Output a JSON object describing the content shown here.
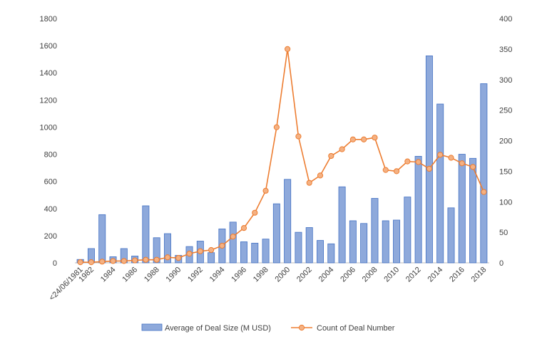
{
  "chart_data": {
    "type": "bar",
    "title": "",
    "xlabel": "",
    "categories": [
      "<24/06/1981",
      "1982",
      "1983",
      "1984",
      "1985",
      "1986",
      "1987",
      "1988",
      "1989",
      "1990",
      "1991",
      "1992",
      "1993",
      "1994",
      "1995",
      "1996",
      "1997",
      "1998",
      "1999",
      "2000",
      "2001",
      "2002",
      "2003",
      "2004",
      "2005",
      "2006",
      "2007",
      "2008",
      "2009",
      "2010",
      "2011",
      "2012",
      "2013",
      "2014",
      "2015",
      "2016",
      "2017",
      "2018"
    ],
    "x_tick_labels": [
      "<24/06/1981",
      "1982",
      "1984",
      "1986",
      "1988",
      "1990",
      "1992",
      "1994",
      "1996",
      "1998",
      "2000",
      "2002",
      "2004",
      "2006",
      "2008",
      "2010",
      "2012",
      "2014",
      "2016",
      "2018"
    ],
    "series": [
      {
        "name": "Average of Deal Size (M USD)",
        "type": "bar",
        "axis": "left",
        "color": "#8EA9DB",
        "values": [
          25,
          105,
          355,
          45,
          105,
          50,
          420,
          185,
          215,
          55,
          120,
          160,
          75,
          250,
          300,
          155,
          145,
          175,
          435,
          615,
          225,
          260,
          165,
          140,
          560,
          310,
          290,
          475,
          310,
          315,
          485,
          785,
          1525,
          1170,
          405,
          800,
          770,
          1320
        ]
      },
      {
        "name": "Count of Deal Number",
        "type": "line",
        "axis": "right",
        "color": "#ED7D31",
        "values": [
          1,
          1,
          2,
          3,
          3,
          4,
          5,
          5,
          9,
          8,
          15,
          19,
          21,
          28,
          43,
          57,
          82,
          118,
          222,
          350,
          207,
          131,
          143,
          175,
          186,
          202,
          202,
          205,
          152,
          150,
          166,
          165,
          154,
          177,
          172,
          163,
          157,
          116
        ]
      }
    ],
    "y_left": {
      "range": [
        0,
        1800
      ],
      "ticks": [
        "0",
        "200",
        "400",
        "600",
        "800",
        "1000",
        "1200",
        "1400",
        "1600",
        "1800"
      ]
    },
    "y_right": {
      "range": [
        0,
        400
      ],
      "ticks": [
        "0",
        "50",
        "100",
        "150",
        "200",
        "250",
        "300",
        "350",
        "400"
      ]
    },
    "legend": {
      "position": "bottom",
      "items": [
        "Average of Deal Size (M USD)",
        "Count of Deal Number"
      ]
    }
  }
}
